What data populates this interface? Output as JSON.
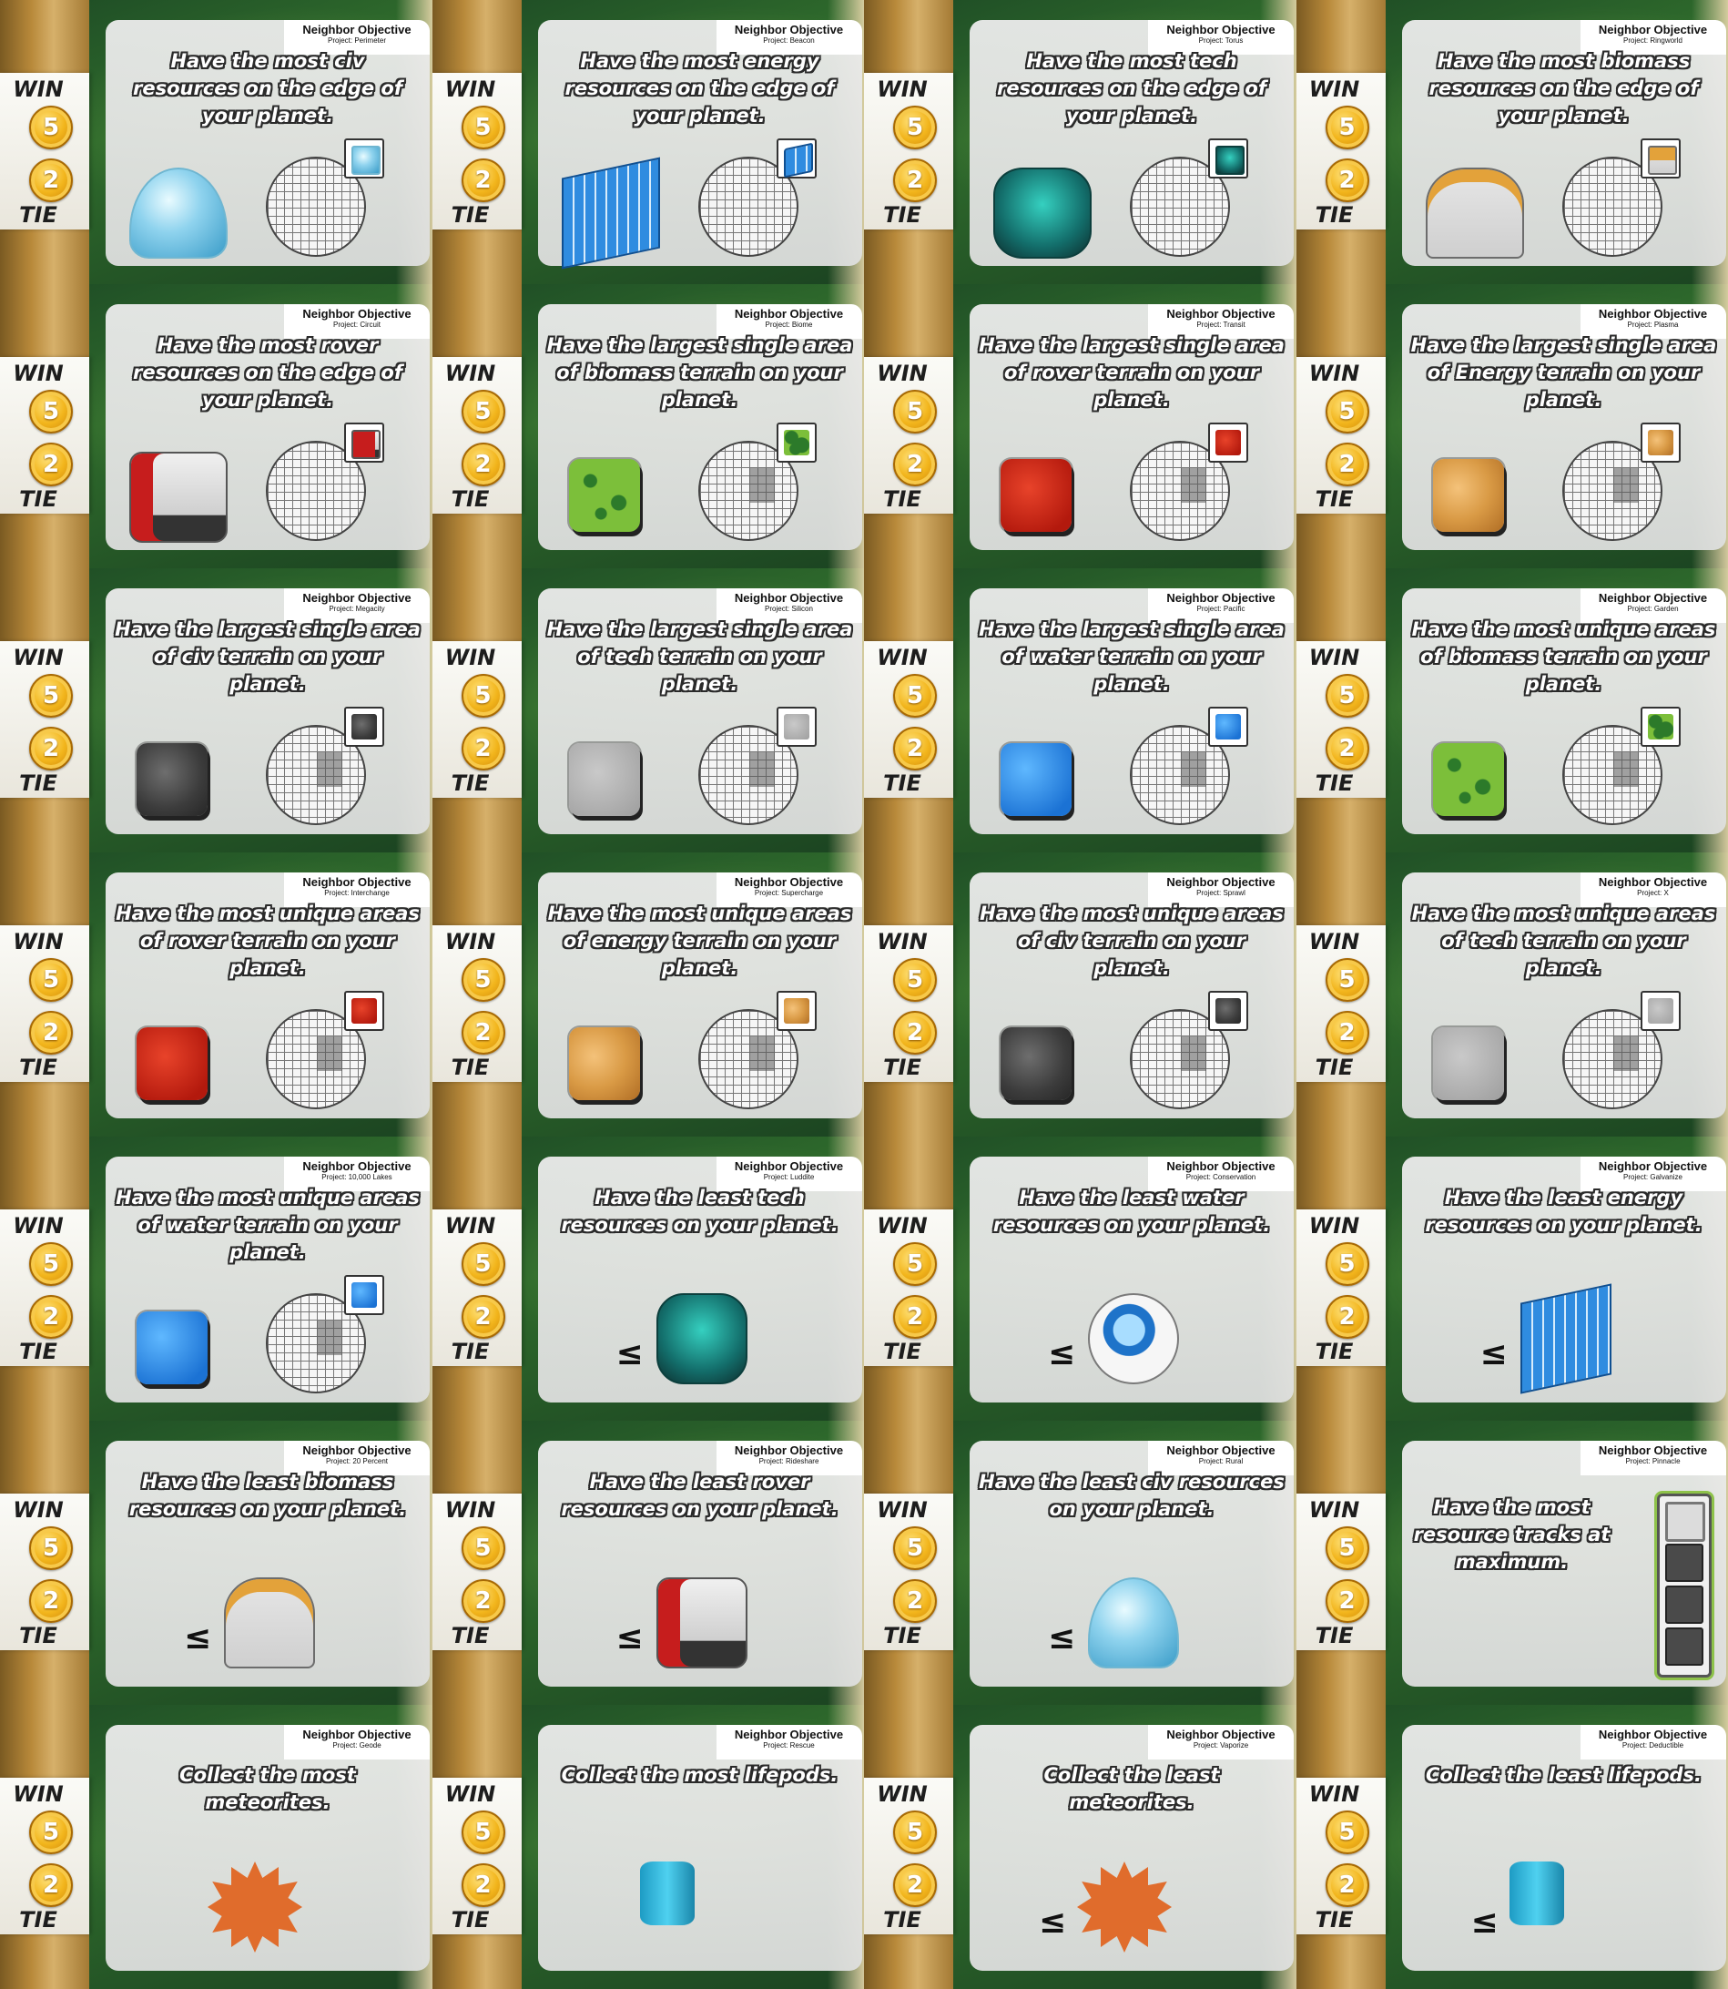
{
  "labels": {
    "win": "WIN",
    "tie": "TIE",
    "win_value": "5",
    "tie_value": "2",
    "leq_symbol": "≤"
  },
  "cards": [
    {
      "title": "Neighbor Objective",
      "project": "Project: Perimeter",
      "text": "Have the most civ resources on the edge of your planet.",
      "kind": "edge",
      "icon": "r-dome",
      "icon_name": "dome-icon"
    },
    {
      "title": "Neighbor Objective",
      "project": "Project: Beacon",
      "text": "Have the most energy resources on the edge of your planet.",
      "kind": "edge",
      "icon": "r-solar",
      "icon_name": "solar-panel-icon"
    },
    {
      "title": "Neighbor Objective",
      "project": "Project: Torus",
      "text": "Have the most tech resources on the edge of your planet.",
      "kind": "edge",
      "icon": "r-robot",
      "icon_name": "robot-icon"
    },
    {
      "title": "Neighbor Objective",
      "project": "Project: Ringworld",
      "text": "Have the most biomass resources on the edge of your planet.",
      "kind": "edge",
      "icon": "r-tower",
      "icon_name": "bio-tower-icon"
    },
    {
      "title": "Neighbor Objective",
      "project": "Project: Circuit",
      "text": "Have the most rover resources on the edge of your planet.",
      "kind": "edge",
      "icon": "r-rover",
      "icon_name": "rover-icon"
    },
    {
      "title": "Neighbor Objective",
      "project": "Project: Biome",
      "text": "Have the largest single area of biomass terrain on your planet.",
      "kind": "terrain",
      "icon": "t-biomass",
      "icon_name": "biomass-tile-icon"
    },
    {
      "title": "Neighbor Objective",
      "project": "Project: Transit",
      "text": "Have the largest single area of rover terrain on your planet.",
      "kind": "terrain",
      "icon": "t-rover",
      "icon_name": "rover-tile-icon"
    },
    {
      "title": "Neighbor Objective",
      "project": "Project: Plasma",
      "text": "Have the largest single area of Energy terrain on your planet.",
      "kind": "terrain",
      "icon": "t-energy",
      "icon_name": "energy-tile-icon"
    },
    {
      "title": "Neighbor Objective",
      "project": "Project: Megacity",
      "text": "Have the largest single area of civ terrain on your planet.",
      "kind": "terrain",
      "icon": "t-civ",
      "icon_name": "civ-tile-icon"
    },
    {
      "title": "Neighbor Objective",
      "project": "Project: Silicon",
      "text": "Have the largest single area of tech terrain on your planet.",
      "kind": "terrain",
      "icon": "t-tech",
      "icon_name": "tech-tile-icon"
    },
    {
      "title": "Neighbor Objective",
      "project": "Project: Pacific",
      "text": "Have the largest single area of water terrain on your planet.",
      "kind": "terrain",
      "icon": "t-water",
      "icon_name": "water-tile-icon"
    },
    {
      "title": "Neighbor Objective",
      "project": "Project: Garden",
      "text": "Have the most unique areas of biomass terrain on your planet.",
      "kind": "terrain",
      "icon": "t-biomass",
      "icon_name": "biomass-tile-icon"
    },
    {
      "title": "Neighbor Objective",
      "project": "Project: Interchange",
      "text": "Have the most unique areas of rover terrain on your planet.",
      "kind": "terrain",
      "icon": "t-rover",
      "icon_name": "rover-tile-icon"
    },
    {
      "title": "Neighbor Objective",
      "project": "Project: Supercharge",
      "text": "Have the most unique areas of energy terrain on your planet.",
      "kind": "terrain",
      "icon": "t-energy",
      "icon_name": "energy-tile-icon"
    },
    {
      "title": "Neighbor Objective",
      "project": "Project: Sprawl",
      "text": "Have the most unique areas of civ terrain on your planet.",
      "kind": "terrain",
      "icon": "t-civ",
      "icon_name": "civ-tile-icon"
    },
    {
      "title": "Neighbor Objective",
      "project": "Project: X",
      "text": "Have the most unique areas of tech terrain on your planet.",
      "kind": "terrain",
      "icon": "t-tech",
      "icon_name": "tech-tile-icon"
    },
    {
      "title": "Neighbor Objective",
      "project": "Project: 10,000 Lakes",
      "text": "Have the most unique areas of water terrain on your planet.",
      "kind": "terrain",
      "icon": "t-water",
      "icon_name": "water-tile-icon"
    },
    {
      "title": "Neighbor Objective",
      "project": "Project: Luddite",
      "text": "Have the least tech resources on your planet.",
      "kind": "least",
      "icon": "r-robot",
      "icon_name": "robot-icon"
    },
    {
      "title": "Neighbor Objective",
      "project": "Project: Conservation",
      "text": "Have the least water resources on your planet.",
      "kind": "least",
      "icon": "r-water",
      "icon_name": "water-pod-icon"
    },
    {
      "title": "Neighbor Objective",
      "project": "Project: Galvanize",
      "text": "Have the least energy resources on your planet.",
      "kind": "least",
      "icon": "r-solar",
      "icon_name": "solar-panel-icon"
    },
    {
      "title": "Neighbor Objective",
      "project": "Project: 20 Percent",
      "text": "Have the least biomass resources on your planet.",
      "kind": "least",
      "icon": "r-tower",
      "icon_name": "bio-tower-icon"
    },
    {
      "title": "Neighbor Objective",
      "project": "Project: Rideshare",
      "text": "Have the least rover resources on your planet.",
      "kind": "least",
      "icon": "r-rover",
      "icon_name": "rover-icon"
    },
    {
      "title": "Neighbor Objective",
      "project": "Project: Rural",
      "text": "Have the least civ resources on your planet.",
      "kind": "least",
      "icon": "r-dome",
      "icon_name": "dome-icon"
    },
    {
      "title": "Neighbor Objective",
      "project": "Project: Pinnacle",
      "text": "Have the most resource tracks at maximum.",
      "kind": "track",
      "icon": "",
      "icon_name": "resource-track-icon"
    },
    {
      "title": "Neighbor Objective",
      "project": "Project: Geode",
      "text": "Collect the most meteorites.",
      "kind": "collect",
      "icon": "r-meteor",
      "icon_name": "meteorite-icon"
    },
    {
      "title": "Neighbor Objective",
      "project": "Project: Rescue",
      "text": "Collect the most lifepods.",
      "kind": "collect",
      "icon": "r-lifepod",
      "icon_name": "lifepod-icon"
    },
    {
      "title": "Neighbor Objective",
      "project": "Project: Vaporize",
      "text": "Collect the least meteorites.",
      "kind": "least-collect",
      "icon": "r-meteor",
      "icon_name": "meteorite-icon"
    },
    {
      "title": "Neighbor Objective",
      "project": "Project: Deductible",
      "text": "Collect the least lifepods.",
      "kind": "least-collect",
      "icon": "r-lifepod",
      "icon_name": "lifepod-icon"
    }
  ]
}
